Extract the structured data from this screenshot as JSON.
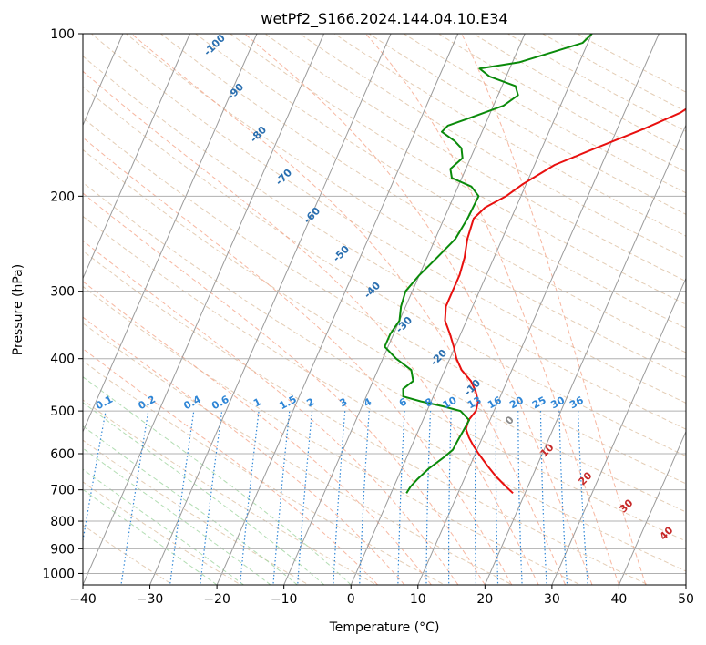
{
  "chart_data": {
    "type": "line",
    "title": "wetPf2_S166.2024.144.04.10.E34",
    "xlabel": "Temperature (°C)",
    "ylabel": "Pressure (hPa)",
    "xlim": [
      -40,
      50
    ],
    "ylim": [
      1050,
      100
    ],
    "y_scale": "log",
    "grid": true,
    "x_ticks": [
      "−40",
      "−30",
      "−20",
      "−10",
      "0",
      "10",
      "20",
      "30",
      "40",
      "50"
    ],
    "y_ticks": [
      "100",
      "200",
      "300",
      "400",
      "500",
      "600",
      "700",
      "800",
      "900",
      "1000"
    ],
    "x_tick_values": [
      -40,
      -30,
      -20,
      -10,
      0,
      10,
      20,
      30,
      40,
      50
    ],
    "y_tick_values": [
      100,
      200,
      300,
      400,
      500,
      600,
      700,
      800,
      900,
      1000
    ],
    "colors": {
      "temperature": "#e8100f",
      "dewpoint": "#0a8a0a",
      "isotherm": "#9a9a9a",
      "dry_adiabat": "#d9b896",
      "moist_adiabat": "#f5a58a",
      "mixing_ratio": "#2f86d6",
      "mixing_label": "#2f86d6",
      "hgt_label_blue": "#2a6fb0",
      "hgt_label_red": "#c62828"
    },
    "series": [
      {
        "key": "temperature",
        "points": [
          [
            100,
            28.6
          ],
          [
            108,
            26.4
          ],
          [
            115,
            25.7
          ],
          [
            125,
            22.6
          ],
          [
            140,
            18.4
          ],
          [
            150,
            14.0
          ],
          [
            163,
            8.0
          ],
          [
            175,
            3.0
          ],
          [
            190,
            -0.5
          ],
          [
            200,
            -2.2
          ],
          [
            210,
            -4.6
          ],
          [
            220,
            -5.6
          ],
          [
            240,
            -5.2
          ],
          [
            260,
            -4.4
          ],
          [
            280,
            -4.0
          ],
          [
            300,
            -4.0
          ],
          [
            320,
            -4.0
          ],
          [
            340,
            -3.2
          ],
          [
            360,
            -1.6
          ],
          [
            380,
            -0.2
          ],
          [
            400,
            1.0
          ],
          [
            420,
            2.5
          ],
          [
            440,
            4.6
          ],
          [
            460,
            6.0
          ],
          [
            480,
            7.0
          ],
          [
            500,
            7.3
          ],
          [
            520,
            6.8
          ],
          [
            540,
            7.0
          ],
          [
            560,
            8.0
          ],
          [
            580,
            9.2
          ],
          [
            600,
            10.5
          ],
          [
            630,
            12.5
          ],
          [
            660,
            14.5
          ],
          [
            690,
            16.7
          ],
          [
            710,
            18.2
          ]
        ]
      },
      {
        "key": "dewpoint",
        "points": [
          [
            100,
            0.0
          ],
          [
            104,
            -0.8
          ],
          [
            108,
            -4.5
          ],
          [
            113,
            -9.0
          ],
          [
            116,
            -14.5
          ],
          [
            120,
            -12.5
          ],
          [
            125,
            -8.0
          ],
          [
            130,
            -7.0
          ],
          [
            136,
            -8.5
          ],
          [
            142,
            -12.0
          ],
          [
            148,
            -15.5
          ],
          [
            152,
            -16.0
          ],
          [
            158,
            -13.5
          ],
          [
            163,
            -12.0
          ],
          [
            170,
            -11.2
          ],
          [
            178,
            -12.3
          ],
          [
            185,
            -11.5
          ],
          [
            192,
            -8.0
          ],
          [
            200,
            -6.3
          ],
          [
            220,
            -6.5
          ],
          [
            240,
            -7.0
          ],
          [
            260,
            -8.5
          ],
          [
            280,
            -10.0
          ],
          [
            300,
            -11.0
          ],
          [
            320,
            -10.7
          ],
          [
            340,
            -10.0
          ],
          [
            360,
            -10.5
          ],
          [
            380,
            -10.5
          ],
          [
            400,
            -8.0
          ],
          [
            420,
            -5.0
          ],
          [
            440,
            -4.0
          ],
          [
            455,
            -5.0
          ],
          [
            470,
            -4.5
          ],
          [
            480,
            -1.5
          ],
          [
            490,
            2.0
          ],
          [
            500,
            5.0
          ],
          [
            520,
            6.9
          ],
          [
            545,
            6.7
          ],
          [
            570,
            6.5
          ],
          [
            590,
            6.4
          ],
          [
            610,
            5.5
          ],
          [
            640,
            4.0
          ],
          [
            670,
            3.0
          ],
          [
            690,
            2.5
          ],
          [
            710,
            2.3
          ]
        ]
      }
    ],
    "isotherm_values": [
      -100,
      -90,
      -80,
      -70,
      -60,
      -50,
      -40,
      -30,
      -20,
      -10,
      0,
      10,
      20,
      30,
      40,
      50
    ],
    "mixing_ratio_values": [
      "0.1",
      "0.2",
      "0.4",
      "0.6",
      "1",
      "1.5",
      "2",
      "3",
      "4",
      "6",
      "8",
      "10",
      "13",
      "16",
      "20",
      "25",
      "30",
      "36"
    ],
    "isotherm_labels_blue": [
      "-100",
      "-90",
      "-80",
      "-70",
      "-60",
      "-50",
      "-40",
      "-30",
      "-20",
      "-10"
    ],
    "isotherm_labels_red": [
      "0",
      "10",
      "20",
      "30",
      "40"
    ]
  }
}
